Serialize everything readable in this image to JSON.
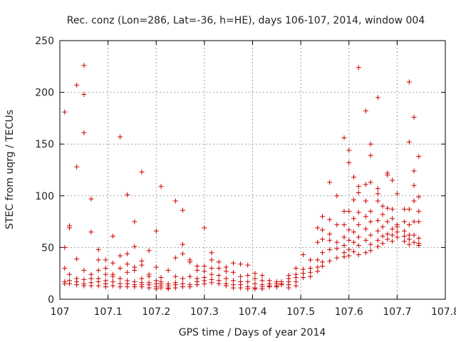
{
  "chart_data": {
    "type": "scatter",
    "title": "Rec. conz (Lon=286, Lat=-36, h=HE), days 106-107, 2014, window 004",
    "xlabel": "GPS time / Days of year 2014",
    "ylabel": "STEC from uqrg / TECUs",
    "xlim": [
      107,
      107.8
    ],
    "ylim": [
      0,
      250
    ],
    "xticks": [
      "107",
      "107.1",
      "107.2",
      "107.3",
      "107.4",
      "107.5",
      "107.6",
      "107.7",
      "107.8"
    ],
    "yticks": [
      "0",
      "50",
      "100",
      "150",
      "200",
      "250"
    ],
    "grid": true,
    "marker": "plus",
    "color": "#cc0000",
    "points": [
      [
        107.01,
        181
      ],
      [
        107.01,
        50
      ],
      [
        107.01,
        30
      ],
      [
        107.01,
        17
      ],
      [
        107.01,
        15
      ],
      [
        107.02,
        71
      ],
      [
        107.02,
        69
      ],
      [
        107.02,
        24
      ],
      [
        107.02,
        18
      ],
      [
        107.02,
        15
      ],
      [
        107.035,
        207
      ],
      [
        107.035,
        128
      ],
      [
        107.035,
        39
      ],
      [
        107.035,
        20
      ],
      [
        107.035,
        17
      ],
      [
        107.035,
        14
      ],
      [
        107.05,
        226
      ],
      [
        107.05,
        198
      ],
      [
        107.05,
        161
      ],
      [
        107.05,
        28
      ],
      [
        107.05,
        19
      ],
      [
        107.05,
        15
      ],
      [
        107.05,
        13
      ],
      [
        107.065,
        97
      ],
      [
        107.065,
        65
      ],
      [
        107.065,
        24
      ],
      [
        107.065,
        20
      ],
      [
        107.065,
        16
      ],
      [
        107.065,
        13
      ],
      [
        107.08,
        48
      ],
      [
        107.08,
        38
      ],
      [
        107.08,
        28
      ],
      [
        107.08,
        20
      ],
      [
        107.08,
        17
      ],
      [
        107.08,
        13
      ],
      [
        107.095,
        38
      ],
      [
        107.095,
        30
      ],
      [
        107.095,
        24
      ],
      [
        107.095,
        18
      ],
      [
        107.095,
        15
      ],
      [
        107.095,
        12
      ],
      [
        107.11,
        61
      ],
      [
        107.11,
        35
      ],
      [
        107.11,
        24
      ],
      [
        107.11,
        22
      ],
      [
        107.11,
        17
      ],
      [
        107.11,
        13
      ],
      [
        107.125,
        157
      ],
      [
        107.125,
        42
      ],
      [
        107.125,
        30
      ],
      [
        107.125,
        20
      ],
      [
        107.125,
        15
      ],
      [
        107.125,
        12
      ],
      [
        107.14,
        101
      ],
      [
        107.14,
        44
      ],
      [
        107.14,
        34
      ],
      [
        107.14,
        26
      ],
      [
        107.14,
        18
      ],
      [
        107.14,
        15
      ],
      [
        107.14,
        12
      ],
      [
        107.155,
        75
      ],
      [
        107.155,
        51
      ],
      [
        107.155,
        31
      ],
      [
        107.155,
        28
      ],
      [
        107.155,
        17
      ],
      [
        107.155,
        14
      ],
      [
        107.155,
        12
      ],
      [
        107.17,
        123
      ],
      [
        107.17,
        37
      ],
      [
        107.17,
        33
      ],
      [
        107.17,
        20
      ],
      [
        107.17,
        16
      ],
      [
        107.17,
        14
      ],
      [
        107.17,
        12
      ],
      [
        107.185,
        47
      ],
      [
        107.185,
        24
      ],
      [
        107.185,
        22
      ],
      [
        107.185,
        16
      ],
      [
        107.185,
        14
      ],
      [
        107.185,
        11
      ],
      [
        107.2,
        66
      ],
      [
        107.2,
        31
      ],
      [
        107.2,
        18
      ],
      [
        107.2,
        15
      ],
      [
        107.2,
        12
      ],
      [
        107.2,
        10
      ],
      [
        107.21,
        109
      ],
      [
        107.21,
        21
      ],
      [
        107.21,
        17
      ],
      [
        107.21,
        15
      ],
      [
        107.21,
        13
      ],
      [
        107.21,
        11
      ],
      [
        107.225,
        28
      ],
      [
        107.225,
        15
      ],
      [
        107.225,
        13
      ],
      [
        107.225,
        11
      ],
      [
        107.225,
        10
      ],
      [
        107.24,
        95
      ],
      [
        107.24,
        40
      ],
      [
        107.24,
        22
      ],
      [
        107.24,
        16
      ],
      [
        107.24,
        14
      ],
      [
        107.24,
        11
      ],
      [
        107.255,
        86
      ],
      [
        107.255,
        53
      ],
      [
        107.255,
        44
      ],
      [
        107.255,
        20
      ],
      [
        107.255,
        15
      ],
      [
        107.255,
        12
      ],
      [
        107.27,
        38
      ],
      [
        107.27,
        36
      ],
      [
        107.27,
        22
      ],
      [
        107.27,
        14
      ],
      [
        107.27,
        12
      ],
      [
        107.285,
        32
      ],
      [
        107.285,
        28
      ],
      [
        107.285,
        20
      ],
      [
        107.285,
        17
      ],
      [
        107.285,
        14
      ],
      [
        107.3,
        69
      ],
      [
        107.3,
        32
      ],
      [
        107.3,
        27
      ],
      [
        107.3,
        21
      ],
      [
        107.3,
        18
      ],
      [
        107.3,
        15
      ],
      [
        107.315,
        45
      ],
      [
        107.315,
        38
      ],
      [
        107.315,
        30
      ],
      [
        107.315,
        24
      ],
      [
        107.315,
        19
      ],
      [
        107.315,
        16
      ],
      [
        107.33,
        36
      ],
      [
        107.33,
        30
      ],
      [
        107.33,
        23
      ],
      [
        107.33,
        18
      ],
      [
        107.33,
        15
      ],
      [
        107.345,
        31
      ],
      [
        107.345,
        27
      ],
      [
        107.345,
        20
      ],
      [
        107.345,
        15
      ],
      [
        107.345,
        13
      ],
      [
        107.36,
        35
      ],
      [
        107.36,
        26
      ],
      [
        107.36,
        18
      ],
      [
        107.36,
        14
      ],
      [
        107.36,
        11
      ],
      [
        107.375,
        34
      ],
      [
        107.375,
        22
      ],
      [
        107.375,
        17
      ],
      [
        107.375,
        14
      ],
      [
        107.375,
        11
      ],
      [
        107.39,
        33
      ],
      [
        107.39,
        23
      ],
      [
        107.39,
        17
      ],
      [
        107.39,
        12
      ],
      [
        107.39,
        10
      ],
      [
        107.405,
        25
      ],
      [
        107.405,
        20
      ],
      [
        107.405,
        15
      ],
      [
        107.405,
        11
      ],
      [
        107.405,
        10
      ],
      [
        107.42,
        23
      ],
      [
        107.42,
        18
      ],
      [
        107.42,
        14
      ],
      [
        107.42,
        12
      ],
      [
        107.42,
        10
      ],
      [
        107.435,
        18
      ],
      [
        107.435,
        15
      ],
      [
        107.435,
        13
      ],
      [
        107.435,
        12
      ],
      [
        107.45,
        17
      ],
      [
        107.45,
        15
      ],
      [
        107.45,
        13
      ],
      [
        107.45,
        12
      ],
      [
        107.46,
        17
      ],
      [
        107.46,
        15
      ],
      [
        107.46,
        14
      ],
      [
        107.475,
        23
      ],
      [
        107.475,
        20
      ],
      [
        107.475,
        17
      ],
      [
        107.475,
        14
      ],
      [
        107.475,
        11
      ],
      [
        107.49,
        30
      ],
      [
        107.49,
        24
      ],
      [
        107.49,
        21
      ],
      [
        107.49,
        17
      ],
      [
        107.49,
        13
      ],
      [
        107.505,
        43
      ],
      [
        107.505,
        29
      ],
      [
        107.505,
        25
      ],
      [
        107.505,
        21
      ],
      [
        107.52,
        38
      ],
      [
        107.52,
        30
      ],
      [
        107.52,
        26
      ],
      [
        107.52,
        22
      ],
      [
        107.535,
        69
      ],
      [
        107.535,
        55
      ],
      [
        107.535,
        38
      ],
      [
        107.535,
        31
      ],
      [
        107.535,
        27
      ],
      [
        107.545,
        80
      ],
      [
        107.545,
        67
      ],
      [
        107.545,
        58
      ],
      [
        107.545,
        45
      ],
      [
        107.545,
        36
      ],
      [
        107.545,
        32
      ],
      [
        107.56,
        113
      ],
      [
        107.56,
        77
      ],
      [
        107.56,
        63
      ],
      [
        107.56,
        57
      ],
      [
        107.56,
        48
      ],
      [
        107.56,
        37
      ],
      [
        107.575,
        100
      ],
      [
        107.575,
        72
      ],
      [
        107.575,
        55
      ],
      [
        107.575,
        49
      ],
      [
        107.575,
        40
      ],
      [
        107.59,
        156
      ],
      [
        107.59,
        85
      ],
      [
        107.59,
        72
      ],
      [
        107.59,
        60
      ],
      [
        107.59,
        52
      ],
      [
        107.59,
        45
      ],
      [
        107.59,
        41
      ],
      [
        107.6,
        144
      ],
      [
        107.6,
        132
      ],
      [
        107.6,
        85
      ],
      [
        107.6,
        67
      ],
      [
        107.6,
        57
      ],
      [
        107.6,
        48
      ],
      [
        107.6,
        42
      ],
      [
        107.61,
        118
      ],
      [
        107.61,
        96
      ],
      [
        107.61,
        78
      ],
      [
        107.61,
        65
      ],
      [
        107.61,
        55
      ],
      [
        107.61,
        46
      ],
      [
        107.62,
        224
      ],
      [
        107.62,
        109
      ],
      [
        107.62,
        103
      ],
      [
        107.62,
        84
      ],
      [
        107.62,
        72
      ],
      [
        107.62,
        60
      ],
      [
        107.62,
        52
      ],
      [
        107.62,
        43
      ],
      [
        107.635,
        182
      ],
      [
        107.635,
        111
      ],
      [
        107.635,
        95
      ],
      [
        107.635,
        80
      ],
      [
        107.635,
        68
      ],
      [
        107.635,
        57
      ],
      [
        107.635,
        45
      ],
      [
        107.645,
        150
      ],
      [
        107.645,
        139
      ],
      [
        107.645,
        113
      ],
      [
        107.645,
        85
      ],
      [
        107.645,
        75
      ],
      [
        107.645,
        62
      ],
      [
        107.645,
        53
      ],
      [
        107.645,
        47
      ],
      [
        107.66,
        195
      ],
      [
        107.66,
        107
      ],
      [
        107.66,
        102
      ],
      [
        107.66,
        95
      ],
      [
        107.66,
        76
      ],
      [
        107.66,
        66
      ],
      [
        107.66,
        57
      ],
      [
        107.66,
        51
      ],
      [
        107.67,
        90
      ],
      [
        107.67,
        82
      ],
      [
        107.67,
        70
      ],
      [
        107.67,
        61
      ],
      [
        107.67,
        54
      ],
      [
        107.68,
        122
      ],
      [
        107.68,
        120
      ],
      [
        107.68,
        88
      ],
      [
        107.68,
        75
      ],
      [
        107.68,
        63
      ],
      [
        107.68,
        58
      ],
      [
        107.69,
        115
      ],
      [
        107.69,
        87
      ],
      [
        107.69,
        78
      ],
      [
        107.69,
        68
      ],
      [
        107.69,
        62
      ],
      [
        107.69,
        56
      ],
      [
        107.7,
        102
      ],
      [
        107.7,
        72
      ],
      [
        107.7,
        70
      ],
      [
        107.7,
        65
      ],
      [
        107.7,
        60
      ],
      [
        107.715,
        87
      ],
      [
        107.715,
        75
      ],
      [
        107.715,
        66
      ],
      [
        107.715,
        61
      ],
      [
        107.715,
        56
      ],
      [
        107.725,
        210
      ],
      [
        107.725,
        152
      ],
      [
        107.725,
        87
      ],
      [
        107.725,
        72
      ],
      [
        107.725,
        62
      ],
      [
        107.725,
        58
      ],
      [
        107.725,
        53
      ],
      [
        107.735,
        176
      ],
      [
        107.735,
        124
      ],
      [
        107.735,
        110
      ],
      [
        107.735,
        95
      ],
      [
        107.735,
        75
      ],
      [
        107.735,
        62
      ],
      [
        107.735,
        55
      ],
      [
        107.745,
        138
      ],
      [
        107.745,
        99
      ],
      [
        107.745,
        85
      ],
      [
        107.745,
        75
      ],
      [
        107.745,
        59
      ],
      [
        107.745,
        54
      ],
      [
        107.745,
        52
      ]
    ]
  }
}
